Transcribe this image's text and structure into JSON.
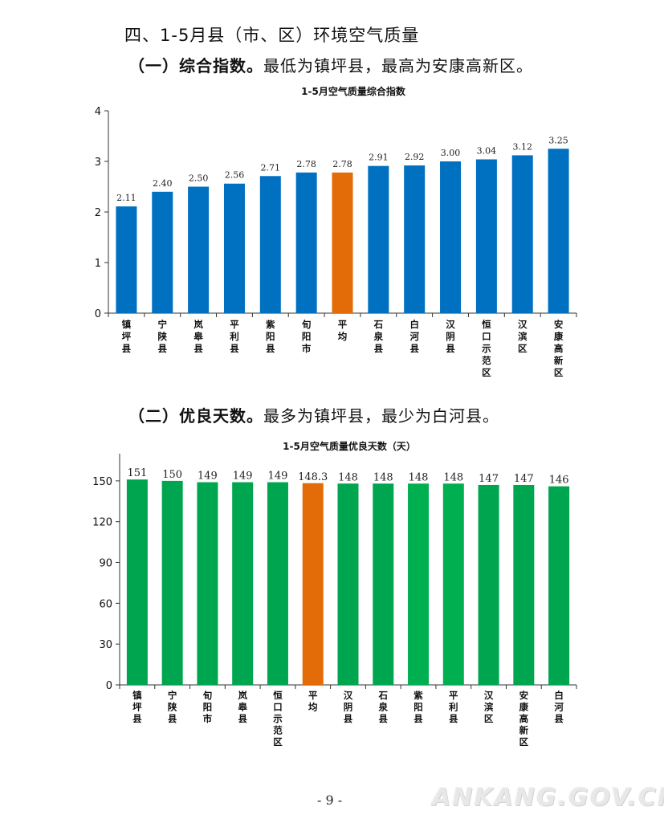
{
  "section_heading": "四、1-5月县（市、区）环境空气质量",
  "sub1": {
    "label": "（一）综合指数。",
    "text": "最低为镇坪县，最高为安康高新区。"
  },
  "sub2": {
    "label": "（二）优良天数。",
    "text": "最多为镇坪县，最少为白河县。"
  },
  "page_number": "- 9 -",
  "watermark": "ANKANG.GOV.CN",
  "chart_data": [
    {
      "type": "bar",
      "title": "1-5月空气质量综合指数",
      "categories": [
        "镇坪县",
        "宁陕县",
        "岚皋县",
        "平利县",
        "紫阳县",
        "旬阳市",
        "平均",
        "石泉县",
        "白河县",
        "汉阴县",
        "恒口示范区",
        "汉滨区",
        "安康高新区"
      ],
      "values": [
        2.11,
        2.4,
        2.5,
        2.56,
        2.71,
        2.78,
        2.78,
        2.91,
        2.92,
        3.0,
        3.04,
        3.12,
        3.25
      ],
      "value_labels": [
        "2.11",
        "2.40",
        "2.50",
        "2.56",
        "2.71",
        "2.78",
        "2.78",
        "2.91",
        "2.92",
        "3.00",
        "3.04",
        "3.12",
        "3.25"
      ],
      "ylim": [
        0,
        4
      ],
      "yticks": [
        "0",
        "1",
        "2",
        "3",
        "4"
      ],
      "bar_color": "#0070c0",
      "highlight_color": "#e36c09",
      "highlight_index": 6,
      "xlabel": "",
      "ylabel": ""
    },
    {
      "type": "bar",
      "title": "1-5月空气质量优良天数（天）",
      "categories": [
        "镇坪县",
        "宁陕县",
        "旬阳市",
        "岚皋县",
        "恒口示范区",
        "平均",
        "汉阴县",
        "石泉县",
        "紫阳县",
        "平利县",
        "汉滨区",
        "安康高新区",
        "白河县"
      ],
      "values": [
        151,
        150,
        149,
        149,
        149,
        148.3,
        148,
        148,
        148,
        148,
        147,
        147,
        146
      ],
      "value_labels": [
        "151",
        "150",
        "149",
        "149",
        "149",
        "148.3",
        "148",
        "148",
        "148",
        "148",
        "147",
        "147",
        "146"
      ],
      "ylim": [
        0,
        170
      ],
      "yticks": [
        "0",
        "30",
        "60",
        "90",
        "120",
        "150"
      ],
      "bar_colors": [
        "#00a550",
        "#00a550",
        "#00a550",
        "#00a550",
        "#00a550",
        "#e36c09",
        "#00a550",
        "#00a550",
        "#00b050",
        "#00b050",
        "#00a550",
        "#00a550",
        "#00a550"
      ],
      "xlabel": "",
      "ylabel": ""
    }
  ]
}
